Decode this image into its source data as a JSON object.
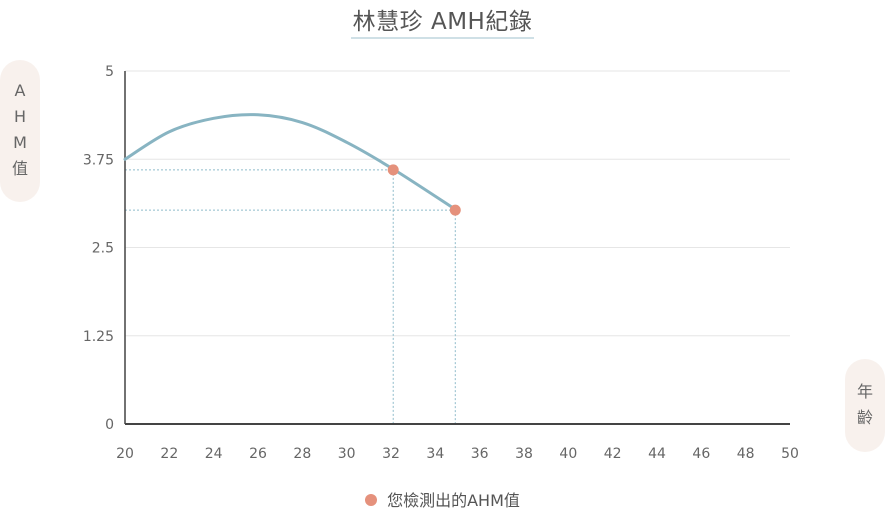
{
  "chart_data": {
    "type": "line",
    "title": "林慧珍  AMH紀錄",
    "ylabel_chars": [
      "A",
      "H",
      "M",
      "值"
    ],
    "xlabel_chars": [
      "年",
      "齡"
    ],
    "x_ticks": [
      "20",
      "22",
      "24",
      "26",
      "28",
      "30",
      "32",
      "34",
      "36",
      "38",
      "40",
      "42",
      "44",
      "46",
      "48",
      "50"
    ],
    "y_ticks": [
      "0",
      "1.25",
      "2.5",
      "3.75",
      "5"
    ],
    "xlim": [
      20,
      50
    ],
    "ylim": [
      0,
      5
    ],
    "grid": true,
    "legend_position": "bottom",
    "series": [
      {
        "name": "",
        "kind": "curve",
        "color": "#88b4c2",
        "x": [
          20,
          22,
          24,
          26,
          28,
          30,
          32.1,
          34.9
        ],
        "y": [
          3.75,
          4.14,
          4.33,
          4.38,
          4.27,
          3.99,
          3.61,
          3.04
        ]
      },
      {
        "name": "您檢測出的AHM值",
        "kind": "points",
        "color": "#e5917c",
        "x": [
          32.1,
          34.9
        ],
        "y": [
          3.6,
          3.03
        ]
      }
    ]
  }
}
